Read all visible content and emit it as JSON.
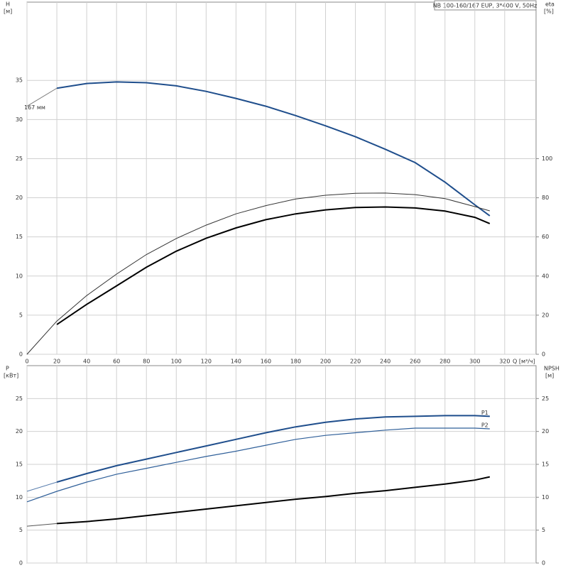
{
  "header": {
    "title": "NB 100-160/167 EUP, 3*400 V, 50Hz"
  },
  "chart_data": [
    {
      "type": "line",
      "y_label": "H",
      "y_unit": "[м]",
      "y2_label": "eta",
      "y2_unit": "[%]",
      "x_label": "Q [м³/ч]",
      "x": [
        0,
        20,
        40,
        60,
        80,
        100,
        120,
        140,
        160,
        180,
        200,
        220,
        240,
        260,
        280,
        300,
        310
      ],
      "xlim": [
        0,
        341
      ],
      "xticks": [
        0,
        20,
        40,
        60,
        80,
        100,
        120,
        140,
        160,
        180,
        200,
        220,
        240,
        260,
        280,
        300,
        320
      ],
      "ylim": [
        0,
        45
      ],
      "yticks": [
        0,
        5,
        10,
        15,
        20,
        25,
        30,
        35
      ],
      "y2lim": [
        0,
        180
      ],
      "y2ticks": [
        0,
        20,
        40,
        60,
        80,
        100
      ],
      "grid": true,
      "series": [
        {
          "color": "#7f7f7f",
          "width": 1,
          "label": "167 мм",
          "label_at": "start",
          "values": [
            31.7,
            34.0,
            34.6,
            34.8,
            34.7,
            34.3,
            33.6,
            32.7,
            31.7,
            30.5,
            29.2,
            27.8,
            26.2,
            24.5,
            22.0,
            19.1,
            17.7
          ]
        },
        {
          "color": "#1f4e8c",
          "width": 2,
          "values": [
            null,
            34.0,
            34.6,
            34.8,
            34.7,
            34.3,
            33.6,
            32.7,
            31.7,
            30.5,
            29.2,
            27.8,
            26.2,
            24.5,
            22.0,
            19.1,
            17.7
          ]
        },
        {
          "color": "#333333",
          "width": 1,
          "axis": "y2",
          "values": [
            0,
            17,
            30,
            41,
            51,
            59.2,
            66,
            71.8,
            76,
            79.4,
            81.3,
            82.3,
            82.4,
            81.6,
            79.6,
            75.5,
            73.3
          ]
        },
        {
          "color": "#000000",
          "width": 2,
          "axis": "y2",
          "values": [
            null,
            15.2,
            25.5,
            35,
            44.5,
            52.7,
            59.3,
            64.6,
            68.8,
            71.8,
            73.8,
            75,
            75.3,
            74.8,
            73.2,
            70,
            66.8
          ]
        }
      ]
    },
    {
      "type": "line",
      "y_label": "P",
      "y_unit": "[кВт]",
      "y2_label": "NPSH",
      "y2_unit": "[м]",
      "x": [
        0,
        20,
        40,
        60,
        80,
        100,
        120,
        140,
        160,
        180,
        200,
        220,
        240,
        260,
        280,
        300,
        310
      ],
      "xlim": [
        0,
        341
      ],
      "ylim": [
        0,
        30
      ],
      "yticks": [
        0,
        5,
        10,
        15,
        20,
        25
      ],
      "y2lim": [
        0,
        30
      ],
      "y2ticks": [
        0,
        5,
        10,
        15,
        20,
        25
      ],
      "grid": true,
      "series": [
        {
          "color": "#5a7fae",
          "width": 1,
          "values": [
            10.9,
            12.3,
            13.6,
            14.8,
            15.8,
            16.8,
            17.8,
            18.8,
            19.8,
            20.7,
            21.4,
            21.9,
            22.2,
            22.3,
            22.4,
            22.4,
            22.3
          ]
        },
        {
          "color": "#1f4e8c",
          "width": 2,
          "label": "P1",
          "label_at": "end",
          "values": [
            null,
            12.3,
            13.6,
            14.8,
            15.8,
            16.8,
            17.8,
            18.8,
            19.8,
            20.7,
            21.4,
            21.9,
            22.2,
            22.3,
            22.4,
            22.4,
            22.3
          ]
        },
        {
          "color": "#2f5f99",
          "width": 1.2,
          "label": "P2",
          "label_at": "end",
          "values": [
            9.3,
            10.9,
            12.3,
            13.5,
            14.4,
            15.3,
            16.2,
            17.0,
            17.9,
            18.8,
            19.4,
            19.8,
            20.2,
            20.5,
            20.5,
            20.5,
            20.4
          ]
        },
        {
          "color": "#555555",
          "width": 1,
          "axis": "y2",
          "values": [
            5.6,
            6.0,
            6.3,
            6.7,
            7.2,
            7.7,
            8.2,
            8.7,
            9.2,
            9.7,
            10.1,
            10.6,
            11.0,
            11.5,
            12.0,
            12.6,
            13.1
          ]
        },
        {
          "color": "#000000",
          "width": 2,
          "axis": "y2",
          "values": [
            null,
            6.0,
            6.3,
            6.7,
            7.2,
            7.7,
            8.2,
            8.7,
            9.2,
            9.7,
            10.1,
            10.6,
            11.0,
            11.5,
            12.0,
            12.6,
            13.1
          ]
        }
      ]
    }
  ]
}
